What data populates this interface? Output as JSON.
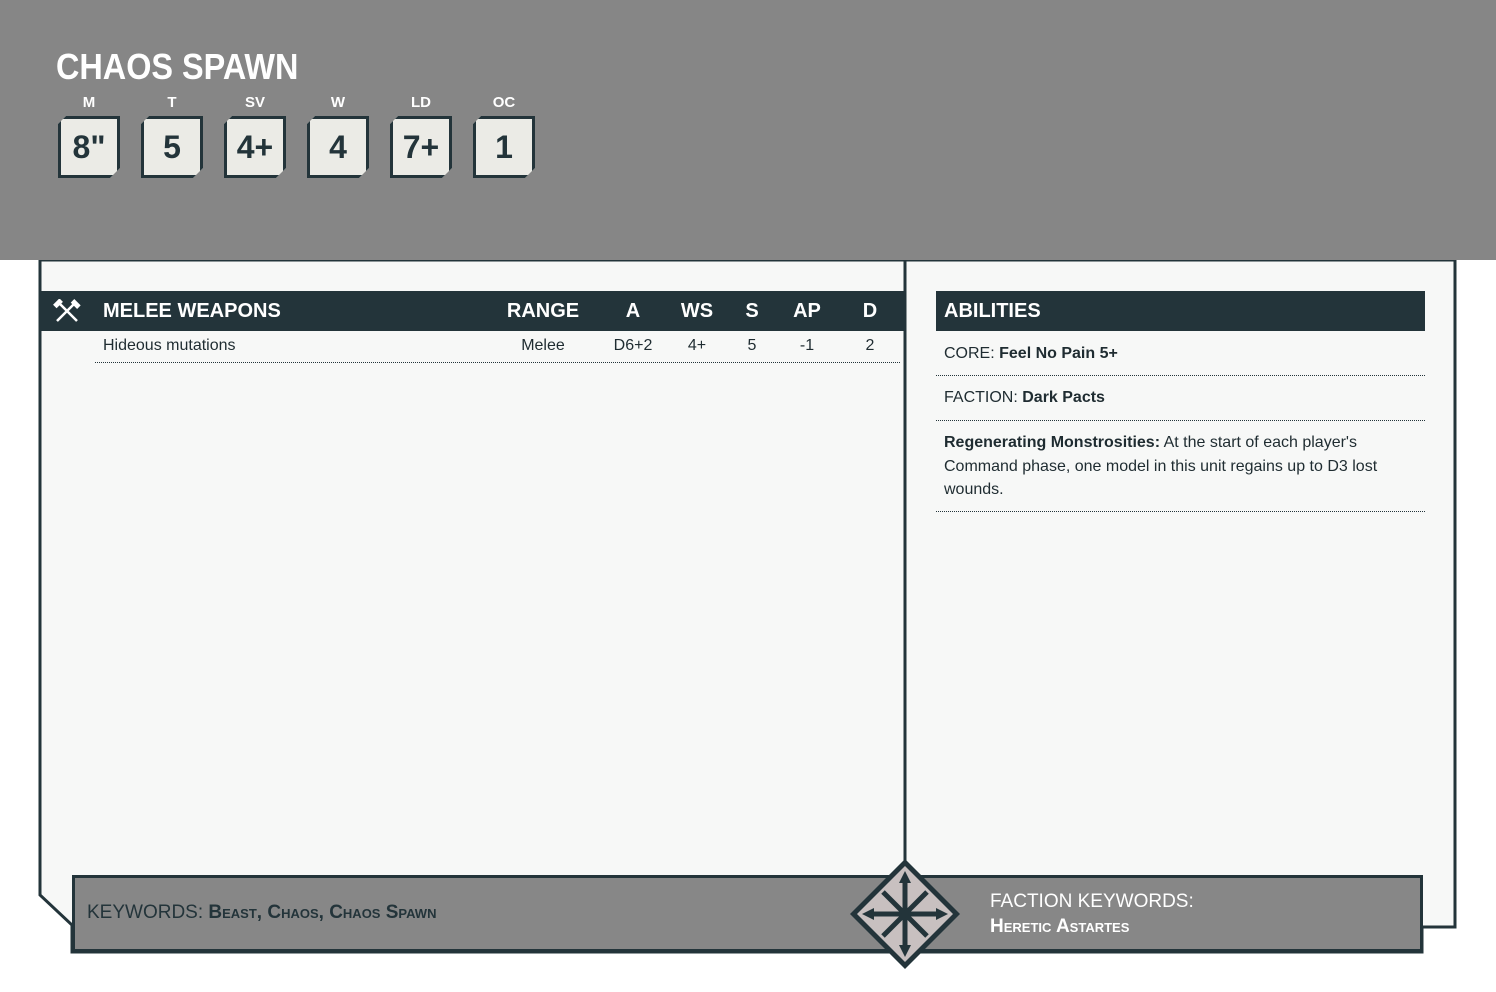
{
  "unit": {
    "name": "CHAOS SPAWN"
  },
  "stats": [
    {
      "label": "M",
      "value": "8\""
    },
    {
      "label": "T",
      "value": "5"
    },
    {
      "label": "SV",
      "value": "4+"
    },
    {
      "label": "W",
      "value": "4"
    },
    {
      "label": "LD",
      "value": "7+"
    },
    {
      "label": "OC",
      "value": "1"
    }
  ],
  "melee": {
    "title": "MELEE WEAPONS",
    "icon": "crossed-hammers-icon",
    "columns": [
      "RANGE",
      "A",
      "WS",
      "S",
      "AP",
      "D"
    ],
    "rows": [
      {
        "name": "Hideous mutations",
        "range": "Melee",
        "a": "D6+2",
        "ws": "4+",
        "s": "5",
        "ap": "-1",
        "d": "2"
      }
    ]
  },
  "abilities": {
    "title": "ABILITIES",
    "core": {
      "label": "CORE:",
      "value": "Feel No Pain 5+"
    },
    "faction": {
      "label": "FACTION:",
      "value": "Dark Pacts"
    },
    "items": [
      {
        "name": "Regenerating Monstrosities:",
        "text": " At the start of each player's Command phase, one model in this unit regains up to D3 lost wounds."
      }
    ]
  },
  "keywords": {
    "label": "KEYWORDS:",
    "value": "Beast, Chaos, Chaos Spawn"
  },
  "faction_keywords": {
    "label": "FACTION KEYWORDS:",
    "value": "Heretic Astartes",
    "icon": "chaos-star-icon"
  },
  "colors": {
    "header": "#868686",
    "dark": "#23343a",
    "card": "#f7f8f7"
  }
}
